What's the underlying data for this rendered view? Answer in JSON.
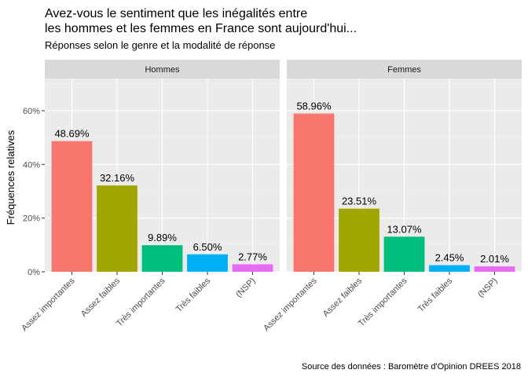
{
  "title_line1": "Avez-vous le sentiment que les inégalités entre",
  "title_line2": "les hommes et les femmes en France sont aujourd'hui...",
  "subtitle": "Réponses selon le genre et la modalité de réponse",
  "caption": "Source des données : Baromètre d'Opinion DREES 2018",
  "chart_data": {
    "type": "bar",
    "title": "Avez-vous le sentiment que les inégalités entre les hommes et les femmes en France sont aujourd'hui...",
    "subtitle": "Réponses selon le genre et la modalité de réponse",
    "xlabel": "",
    "ylabel": "Fréquences relatives",
    "ylim": [
      0,
      0.72
    ],
    "yticks": [
      0,
      0.2,
      0.4,
      0.6
    ],
    "ytick_labels": [
      "0%",
      "20%",
      "40%",
      "60%"
    ],
    "grid": true,
    "legend": "none",
    "categories": [
      "Assez importantes",
      "Assez faibles",
      "Très importantes",
      "Très faibles",
      "(NSP)"
    ],
    "category_colors": [
      "#F8766D",
      "#A3A500",
      "#00BF7D",
      "#00B0F6",
      "#E76BF3"
    ],
    "facets": [
      {
        "name": "Hommes",
        "values": [
          0.4869,
          0.3216,
          0.0989,
          0.065,
          0.0277
        ],
        "labels": [
          "48.69%",
          "32.16%",
          "9.89%",
          "6.50%",
          "2.77%"
        ]
      },
      {
        "name": "Femmes",
        "values": [
          0.5896,
          0.2351,
          0.1307,
          0.0245,
          0.0201
        ],
        "labels": [
          "58.96%",
          "23.51%",
          "13.07%",
          "2.45%",
          "2.01%"
        ]
      }
    ]
  }
}
